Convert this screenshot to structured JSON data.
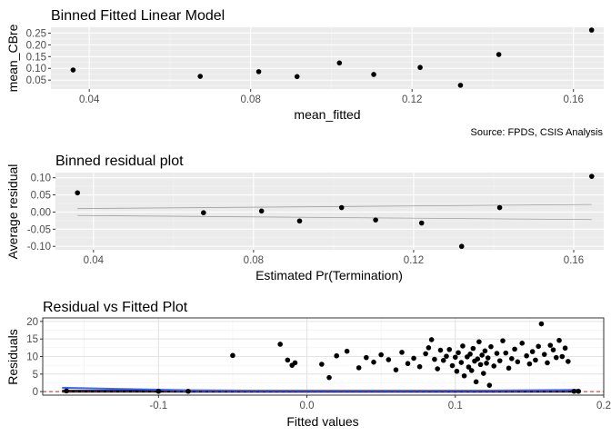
{
  "chart_data": [
    {
      "type": "scatter",
      "title": "Binned Fitted Linear Model",
      "xlabel": "mean_fitted",
      "ylabel": "mean_CBre",
      "caption": "Source: FPDS, CSIS Analysis",
      "xlim": [
        0.0305,
        0.1675
      ],
      "ylim": [
        0.012,
        0.275
      ],
      "grid": true,
      "x_ticks": [
        0.04,
        0.08,
        0.12,
        0.16
      ],
      "x_tick_labels": [
        "0.04",
        "0.08",
        "0.12",
        "0.16"
      ],
      "y_ticks": [
        0.05,
        0.1,
        0.15,
        0.2,
        0.25
      ],
      "y_tick_labels": [
        "0.05",
        "0.10",
        "0.15",
        "0.20",
        "0.25"
      ],
      "points": [
        {
          "x": 0.036,
          "y": 0.093
        },
        {
          "x": 0.0675,
          "y": 0.066
        },
        {
          "x": 0.082,
          "y": 0.086
        },
        {
          "x": 0.0915,
          "y": 0.065
        },
        {
          "x": 0.102,
          "y": 0.123
        },
        {
          "x": 0.1105,
          "y": 0.074
        },
        {
          "x": 0.122,
          "y": 0.104
        },
        {
          "x": 0.132,
          "y": 0.028
        },
        {
          "x": 0.1415,
          "y": 0.159
        },
        {
          "x": 0.1645,
          "y": 0.263
        }
      ]
    },
    {
      "type": "scatter",
      "title": "Binned residual plot",
      "xlabel": "Estimated Pr(Termination)",
      "ylabel": "Average residual",
      "xlim": [
        0.0305,
        0.1675
      ],
      "ylim": [
        -0.11,
        0.115
      ],
      "grid": true,
      "x_ticks": [
        0.04,
        0.08,
        0.12,
        0.16
      ],
      "x_tick_labels": [
        "0.04",
        "0.08",
        "0.12",
        "0.16"
      ],
      "y_ticks": [
        -0.1,
        -0.05,
        0.0,
        0.05,
        0.1
      ],
      "y_tick_labels": [
        "-0.10",
        "-0.05",
        "0.00",
        "0.05",
        "0.10"
      ],
      "points": [
        {
          "x": 0.036,
          "y": 0.056
        },
        {
          "x": 0.0675,
          "y": -0.002
        },
        {
          "x": 0.082,
          "y": 0.003
        },
        {
          "x": 0.0915,
          "y": -0.026
        },
        {
          "x": 0.102,
          "y": 0.013
        },
        {
          "x": 0.1105,
          "y": -0.023
        },
        {
          "x": 0.122,
          "y": -0.032
        },
        {
          "x": 0.132,
          "y": -0.1
        },
        {
          "x": 0.1415,
          "y": 0.013
        },
        {
          "x": 0.1645,
          "y": 0.104
        }
      ],
      "bands": {
        "x": [
          0.036,
          0.1645
        ],
        "upper": [
          0.01,
          0.022
        ],
        "lower": [
          -0.01,
          -0.022
        ]
      }
    },
    {
      "type": "scatter",
      "title": "Residual vs Fitted Plot",
      "xlabel": "Fitted values",
      "ylabel": "Residuals",
      "xlim": [
        -0.178,
        0.2
      ],
      "ylim": [
        -1,
        21
      ],
      "grid": true,
      "x_ticks": [
        -0.1,
        0.0,
        0.1,
        0.2
      ],
      "x_tick_labels": [
        "-0.1",
        "0.0",
        "0.1",
        "0.2"
      ],
      "y_ticks": [
        0,
        5,
        10,
        15,
        20
      ],
      "y_tick_labels": [
        "0",
        "5",
        "10",
        "15",
        "20"
      ],
      "reference_line_y": 0,
      "points": [
        {
          "x": -0.162,
          "y": 0.2
        },
        {
          "x": -0.1,
          "y": 0.1
        },
        {
          "x": -0.08,
          "y": 0.1
        },
        {
          "x": -0.05,
          "y": 10.3
        },
        {
          "x": -0.018,
          "y": 13.5
        },
        {
          "x": -0.013,
          "y": 9.0
        },
        {
          "x": -0.01,
          "y": 7.5
        },
        {
          "x": -0.008,
          "y": 8.2
        },
        {
          "x": 0.01,
          "y": 7.8
        },
        {
          "x": 0.015,
          "y": 4.0
        },
        {
          "x": 0.02,
          "y": 10.2
        },
        {
          "x": 0.027,
          "y": 11.5
        },
        {
          "x": 0.035,
          "y": 6.8
        },
        {
          "x": 0.04,
          "y": 9.7
        },
        {
          "x": 0.045,
          "y": 8.4
        },
        {
          "x": 0.05,
          "y": 10.5
        },
        {
          "x": 0.055,
          "y": 9.1
        },
        {
          "x": 0.06,
          "y": 6.2
        },
        {
          "x": 0.064,
          "y": 11.2
        },
        {
          "x": 0.068,
          "y": 8.0
        },
        {
          "x": 0.072,
          "y": 9.5
        },
        {
          "x": 0.076,
          "y": 7.1
        },
        {
          "x": 0.08,
          "y": 10.8
        },
        {
          "x": 0.082,
          "y": 12.5
        },
        {
          "x": 0.084,
          "y": 14.8
        },
        {
          "x": 0.086,
          "y": 9.2
        },
        {
          "x": 0.088,
          "y": 6.5
        },
        {
          "x": 0.09,
          "y": 11.8
        },
        {
          "x": 0.092,
          "y": 8.9
        },
        {
          "x": 0.094,
          "y": 10.1
        },
        {
          "x": 0.096,
          "y": 12.0
        },
        {
          "x": 0.098,
          "y": 7.4
        },
        {
          "x": 0.1,
          "y": 9.8
        },
        {
          "x": 0.101,
          "y": 5.8
        },
        {
          "x": 0.102,
          "y": 11.1
        },
        {
          "x": 0.104,
          "y": 8.3
        },
        {
          "x": 0.105,
          "y": 13.0
        },
        {
          "x": 0.106,
          "y": 4.5
        },
        {
          "x": 0.108,
          "y": 9.9
        },
        {
          "x": 0.109,
          "y": 7.0
        },
        {
          "x": 0.11,
          "y": 10.7
        },
        {
          "x": 0.111,
          "y": 6.0
        },
        {
          "x": 0.112,
          "y": 12.3
        },
        {
          "x": 0.113,
          "y": 8.7
        },
        {
          "x": 0.114,
          "y": 2.8
        },
        {
          "x": 0.115,
          "y": 9.3
        },
        {
          "x": 0.116,
          "y": 14.2
        },
        {
          "x": 0.117,
          "y": 7.7
        },
        {
          "x": 0.118,
          "y": 10.4
        },
        {
          "x": 0.119,
          "y": 5.2
        },
        {
          "x": 0.12,
          "y": 11.6
        },
        {
          "x": 0.121,
          "y": 8.1
        },
        {
          "x": 0.122,
          "y": 9.6
        },
        {
          "x": 0.123,
          "y": 1.8
        },
        {
          "x": 0.124,
          "y": 12.8
        },
        {
          "x": 0.126,
          "y": 7.3
        },
        {
          "x": 0.128,
          "y": 10.9
        },
        {
          "x": 0.13,
          "y": 8.8
        },
        {
          "x": 0.132,
          "y": 14.5
        },
        {
          "x": 0.134,
          "y": 11.0
        },
        {
          "x": 0.136,
          "y": 6.7
        },
        {
          "x": 0.138,
          "y": 9.4
        },
        {
          "x": 0.14,
          "y": 12.1
        },
        {
          "x": 0.142,
          "y": 8.5
        },
        {
          "x": 0.145,
          "y": 13.8
        },
        {
          "x": 0.148,
          "y": 10.2
        },
        {
          "x": 0.15,
          "y": 7.9
        },
        {
          "x": 0.152,
          "y": 11.4
        },
        {
          "x": 0.154,
          "y": 9.0
        },
        {
          "x": 0.156,
          "y": 12.9
        },
        {
          "x": 0.158,
          "y": 19.3
        },
        {
          "x": 0.16,
          "y": 10.6
        },
        {
          "x": 0.162,
          "y": 8.2
        },
        {
          "x": 0.164,
          "y": 13.2
        },
        {
          "x": 0.166,
          "y": 11.9
        },
        {
          "x": 0.168,
          "y": 9.7
        },
        {
          "x": 0.17,
          "y": 14.6
        },
        {
          "x": 0.172,
          "y": 10.0
        },
        {
          "x": 0.174,
          "y": 12.4
        },
        {
          "x": 0.176,
          "y": 8.6
        },
        {
          "x": 0.18,
          "y": 0.1
        },
        {
          "x": 0.183,
          "y": 0.1
        }
      ],
      "smooth": {
        "x": [
          -0.165,
          -0.12,
          -0.08,
          0.0,
          0.06,
          0.12,
          0.183
        ],
        "y": [
          1.1,
          0.7,
          0.4,
          0.2,
          0.2,
          0.3,
          0.5
        ]
      },
      "flat_line": {
        "x": [
          -0.165,
          0.183
        ],
        "y": [
          0.1,
          0.1
        ]
      }
    }
  ]
}
